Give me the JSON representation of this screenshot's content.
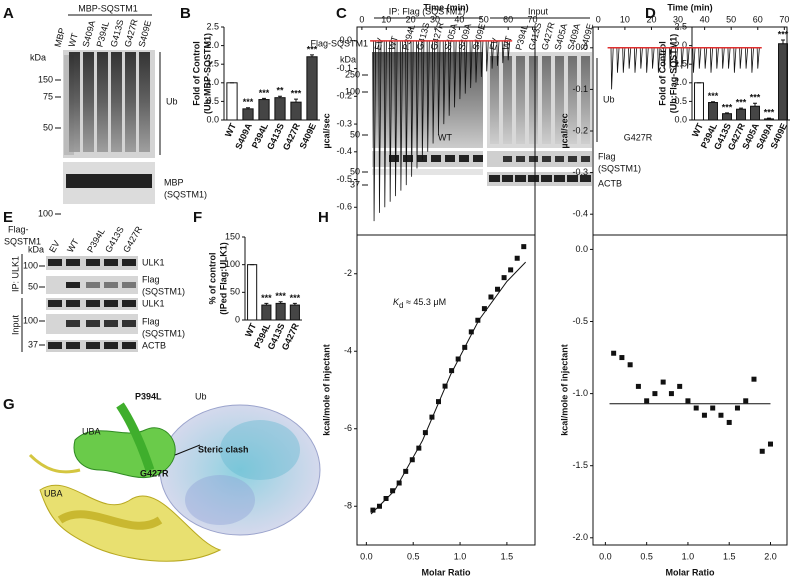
{
  "letters": [
    "A",
    "B",
    "C",
    "D",
    "E",
    "F",
    "G",
    "H"
  ],
  "blot_a": {
    "title": "MBP-SQSTM1",
    "lanes": [
      "MBP",
      "WT",
      "S409A",
      "P394L",
      "G413S",
      "G427R",
      "S409E"
    ],
    "kda": "kDa",
    "markers": [
      150,
      75,
      50,
      100
    ],
    "ub": "Ub",
    "mbp": "MBP",
    "sqstm1": "(SQSTM1)"
  },
  "blot_c": {
    "ip": "IP:  Flag (SQSTM1)",
    "input": "Input",
    "construct": "Flag-SQSTM1",
    "ip_lanes": [
      "EV",
      "WT",
      "P394L",
      "G413S",
      "G427R",
      "S405A",
      "S409A",
      "S409E"
    ],
    "input_lanes": [
      "EV",
      "WT",
      "P394L",
      "G413S",
      "G427R",
      "S405A",
      "S409A",
      "S409E"
    ],
    "kda": "kDa",
    "markers": [
      250,
      100,
      50,
      50,
      37
    ],
    "ub": "Ub",
    "flag": "Flag",
    "sqstm1": "(SQSTM1)",
    "actb": "ACTB"
  },
  "blot_e": {
    "construct": [
      "Flag-",
      "SQSTM1"
    ],
    "lanes": [
      "EV",
      "WT",
      "P394L",
      "G413S",
      "G427R"
    ],
    "kda": "kDa",
    "markers": [
      100,
      50,
      100,
      37
    ],
    "ip": "IP: ULK1",
    "input": "Input",
    "rows": [
      "ULK1",
      "Flag",
      "(SQSTM1)",
      "ULK1",
      "Flag",
      "(SQSTM1)",
      "ACTB"
    ]
  },
  "structure": {
    "p394l": "P394L",
    "ub": "Ub",
    "uba_1": "UBA",
    "g427r": "G427R",
    "clash": "Steric clash",
    "uba_2": "UBA"
  },
  "chart_data": [
    {
      "type": "bar",
      "ylabel": [
        "Fold of Control",
        "(Ub:MBP-SQSTM1)"
      ],
      "categories": [
        "WT",
        "S409A",
        "P394L",
        "G413S",
        "G427R",
        "S409E"
      ],
      "values": [
        1,
        0.3,
        0.55,
        0.6,
        0.48,
        1.7
      ],
      "errors": [
        0,
        0.03,
        0.03,
        0.04,
        0.08,
        0.05
      ],
      "significance": [
        null,
        "***",
        "***",
        "**",
        "***",
        "***"
      ],
      "colors": [
        "#ffffff",
        "#454545",
        "#454545",
        "#454545",
        "#454545",
        "#454545"
      ],
      "ylim": [
        0,
        2.5
      ],
      "yticks": [
        {
          "value": 0,
          "label": "0.0"
        },
        0.5,
        {
          "value": 1,
          "label": "1.0"
        },
        1.5,
        {
          "value": 2,
          "label": "2.0"
        },
        2.5
      ]
    },
    {
      "type": "bar",
      "ylabel": [
        "Fold of Control",
        "(Ub:Flag-SQSTM1)"
      ],
      "categories": [
        "WT",
        "P394L",
        "G413S",
        "G427R",
        "S405A",
        "S409A",
        "S409E"
      ],
      "values": [
        1,
        0.47,
        0.17,
        0.29,
        0.37,
        0.03,
        2.05
      ],
      "errors": [
        0,
        0.02,
        0.02,
        0.03,
        0.08,
        0.02,
        0.1
      ],
      "significance": [
        null,
        "***",
        "***",
        "***",
        "***",
        "***",
        "***"
      ],
      "colors": [
        "#ffffff",
        "#454545",
        "#454545",
        "#454545",
        "#454545",
        "#454545",
        "#454545"
      ],
      "ylim": [
        0,
        2.5
      ],
      "yticks": [
        {
          "value": 0,
          "label": "0.0"
        },
        0.5,
        {
          "value": 1,
          "label": "1.0"
        },
        1.5,
        {
          "value": 2,
          "label": "2.0"
        },
        2.5
      ]
    },
    {
      "type": "bar",
      "ylabel": [
        "% of control",
        "(IPed Flag:ULK1)"
      ],
      "categories": [
        "WT",
        "P394L",
        "G413S",
        "G427R"
      ],
      "values": [
        100,
        27,
        30,
        27
      ],
      "errors": [
        0,
        3,
        3,
        3
      ],
      "significance": [
        null,
        "***",
        "***",
        "***"
      ],
      "colors": [
        "#ffffff",
        "#454545",
        "#454545",
        "#454545"
      ],
      "ylim": [
        0,
        150
      ],
      "yticks": [
        0,
        50,
        100,
        150
      ]
    },
    {
      "type": "thermogram",
      "xlabel": "Time (min)",
      "ylabel": "µcal/sec",
      "annotation": "WT",
      "x": [
        5,
        7.2,
        9.4,
        11.6,
        13.8,
        16,
        18.2,
        20.4,
        22.6,
        24.8,
        27,
        29.2,
        31.4,
        33.6,
        35.8,
        38,
        40.2,
        42.4,
        44.6,
        46.8,
        49,
        51.2,
        53.4,
        55.6,
        57.8,
        60
      ],
      "values": [
        -0.65,
        -0.62,
        -0.6,
        -0.58,
        -0.56,
        -0.54,
        -0.52,
        -0.49,
        -0.46,
        -0.43,
        -0.4,
        -0.37,
        -0.34,
        -0.3,
        -0.27,
        -0.24,
        -0.21,
        -0.19,
        -0.17,
        -0.15,
        -0.13,
        -0.11,
        -0.1,
        -0.09,
        -0.08,
        -0.07
      ],
      "color": "#111111",
      "baseline_color": "#e03030",
      "xlim": [
        -2,
        71
      ],
      "xticks": [
        0,
        10,
        20,
        30,
        40,
        50,
        60,
        70
      ],
      "ylim": [
        -0.7,
        0.05
      ],
      "yticks": [
        {
          "value": 0,
          "label": "0.0"
        },
        -0.1,
        -0.2,
        -0.3,
        -0.4,
        -0.5,
        -0.6
      ]
    },
    {
      "type": "scatter",
      "xlabel": "Molar Ratio",
      "ylabel": "kcal/mole of injectant",
      "annotation": [
        "K",
        "d",
        " ≈ 45.3 μM"
      ],
      "x": [
        0.07,
        0.14,
        0.21,
        0.28,
        0.35,
        0.42,
        0.49,
        0.56,
        0.63,
        0.7,
        0.77,
        0.84,
        0.91,
        0.98,
        1.05,
        1.12,
        1.19,
        1.26,
        1.33,
        1.4,
        1.47,
        1.54,
        1.61,
        1.68
      ],
      "values": [
        -8.1,
        -8.0,
        -7.8,
        -7.6,
        -7.4,
        -7.1,
        -6.8,
        -6.5,
        -6.1,
        -5.7,
        -5.3,
        -4.9,
        -4.5,
        -4.2,
        -3.9,
        -3.5,
        -3.2,
        -2.9,
        -2.6,
        -2.4,
        -2.1,
        -1.9,
        -1.6,
        -1.3
      ],
      "fit_x": [
        0.05,
        0.3,
        0.6,
        0.9,
        1.2,
        1.5,
        1.7
      ],
      "fit_values": [
        -8.2,
        -7.6,
        -6.3,
        -4.6,
        -3.2,
        -2.2,
        -1.7
      ],
      "color": "#111111",
      "xlim": [
        -0.1,
        1.8
      ],
      "xticks": [
        {
          "value": 0,
          "label": "0.0"
        },
        0.5,
        {
          "value": 1,
          "label": "1.0"
        },
        1.5
      ],
      "ylim": [
        -9,
        -1
      ],
      "yticks": [
        -8,
        -6,
        -4,
        -2
      ]
    },
    {
      "type": "thermogram",
      "xlabel": "Time (min)",
      "ylabel": "µcal/sec",
      "annotation": "G427R",
      "x": [
        5,
        7.2,
        9.4,
        11.6,
        13.8,
        16,
        18.2,
        20.4,
        22.6,
        24.8,
        27,
        29.2,
        31.4,
        33.6,
        35.8,
        38,
        40.2,
        42.4,
        44.6,
        46.8,
        49,
        51.2,
        53.4,
        55.6,
        57.8,
        60
      ],
      "values": [
        -0.1,
        -0.06,
        -0.06,
        -0.05,
        -0.06,
        -0.05,
        -0.06,
        -0.05,
        -0.06,
        -0.05,
        -0.05,
        -0.06,
        -0.05,
        -0.05,
        -0.06,
        -0.05,
        -0.05,
        -0.06,
        -0.05,
        -0.05,
        -0.05,
        -0.06,
        -0.05,
        -0.05,
        -0.06,
        -0.05
      ],
      "color": "#111111",
      "baseline_color": "#e03030",
      "xlim": [
        -2,
        71
      ],
      "xticks": [
        0,
        10,
        20,
        30,
        40,
        50,
        60,
        70
      ],
      "ylim": [
        -0.45,
        0.05
      ],
      "yticks": [
        {
          "value": 0,
          "label": "0.0"
        },
        -0.1,
        -0.2,
        -0.3,
        -0.4
      ]
    },
    {
      "type": "scatter",
      "xlabel": "Molar Ratio",
      "ylabel": "kcal/mole of injectant",
      "x": [
        0.1,
        0.2,
        0.3,
        0.4,
        0.5,
        0.6,
        0.7,
        0.8,
        0.9,
        1.0,
        1.1,
        1.2,
        1.3,
        1.4,
        1.5,
        1.6,
        1.7,
        1.8,
        1.9,
        2.0
      ],
      "values": [
        -0.72,
        -0.75,
        -0.8,
        -0.95,
        -1.05,
        -1.0,
        -0.92,
        -1.0,
        -0.95,
        -1.05,
        -1.1,
        -1.15,
        -1.1,
        -1.15,
        -1.2,
        -1.1,
        -1.05,
        -0.9,
        -1.4,
        -1.35
      ],
      "fit_x": [
        0.05,
        2.0
      ],
      "fit_values": [
        -1.07,
        -1.07
      ],
      "color": "#111111",
      "xlim": [
        -0.15,
        2.2
      ],
      "xticks": [
        {
          "value": 0,
          "label": "0.0"
        },
        0.5,
        {
          "value": 1,
          "label": "1.0"
        },
        1.5,
        {
          "value": 2,
          "label": "2.0"
        }
      ],
      "ylim": [
        -2.05,
        0.1
      ],
      "yticks": [
        {
          "value": 0,
          "label": "0.0"
        },
        -0.5,
        {
          "value": -1,
          "label": "-1.0"
        },
        -1.5,
        {
          "value": -2,
          "label": "-2.0"
        }
      ]
    }
  ]
}
